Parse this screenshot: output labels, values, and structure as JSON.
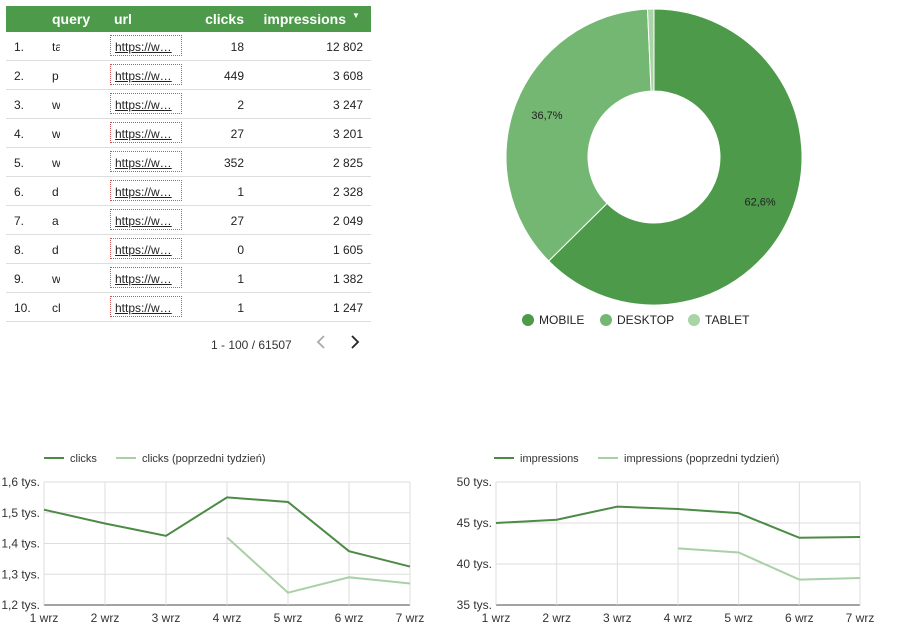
{
  "table": {
    "headers": {
      "query": "query",
      "url": "url",
      "clicks": "clicks",
      "impressions": "impressions"
    },
    "rows": [
      {
        "idx": "1.",
        "query": "ta",
        "url": "https://w…",
        "clicks": "18",
        "impressions": "12 802"
      },
      {
        "idx": "2.",
        "query": "p",
        "url": "https://w…",
        "clicks": "449",
        "impressions": "3 608"
      },
      {
        "idx": "3.",
        "query": "w",
        "url": "https://w…",
        "clicks": "2",
        "impressions": "3 247"
      },
      {
        "idx": "4.",
        "query": "w",
        "url": "https://w…",
        "clicks": "27",
        "impressions": "3 201"
      },
      {
        "idx": "5.",
        "query": "w",
        "url": "https://w…",
        "clicks": "352",
        "impressions": "2 825"
      },
      {
        "idx": "6.",
        "query": "d",
        "url": "https://w…",
        "clicks": "1",
        "impressions": "2 328"
      },
      {
        "idx": "7.",
        "query": "a",
        "url": "https://w…",
        "clicks": "27",
        "impressions": "2 049"
      },
      {
        "idx": "8.",
        "query": "d",
        "url": "https://w…",
        "clicks": "0",
        "impressions": "1 605"
      },
      {
        "idx": "9.",
        "query": "w",
        "url": "https://w…",
        "clicks": "1",
        "impressions": "1 382"
      },
      {
        "idx": "10.",
        "query": "cl",
        "url": "https://w…",
        "clicks": "1",
        "impressions": "1 247"
      }
    ],
    "pager": "1 - 100 / 61507"
  },
  "chart_data": [
    {
      "type": "pie",
      "donut": true,
      "labels": [
        "MOBILE",
        "DESKTOP",
        "TABLET"
      ],
      "values": [
        62.6,
        36.7,
        0.7
      ],
      "data_labels": [
        "62,6%",
        "36,7%",
        ""
      ],
      "colors": [
        "#4c9a4a",
        "#74b772",
        "#a8d4a6"
      ],
      "legend": "bottom"
    },
    {
      "type": "line",
      "categories": [
        "1 wrz",
        "2 wrz",
        "3 wrz",
        "4 wrz",
        "5 wrz",
        "6 wrz",
        "7 wrz"
      ],
      "series": [
        {
          "name": "clicks",
          "color": "#4c8a45",
          "values": [
            1.51,
            1.465,
            1.425,
            1.55,
            1.535,
            1.375,
            1.325
          ]
        },
        {
          "name": "clicks (poprzedni tydzień)",
          "color": "#a9d0a6",
          "values": [
            null,
            null,
            null,
            1.42,
            1.24,
            1.29,
            1.27
          ]
        }
      ],
      "ylim": [
        1.2,
        1.6
      ],
      "yticks": [
        "1,2 tys.",
        "1,3 tys.",
        "1,4 tys.",
        "1,5 tys.",
        "1,6 tys."
      ],
      "legend": "top"
    },
    {
      "type": "line",
      "categories": [
        "1 wrz",
        "2 wrz",
        "3 wrz",
        "4 wrz",
        "5 wrz",
        "6 wrz",
        "7 wrz"
      ],
      "series": [
        {
          "name": "impressions",
          "color": "#4c8a45",
          "values": [
            45.0,
            45.4,
            47.0,
            46.7,
            46.2,
            43.2,
            43.3
          ]
        },
        {
          "name": "impressions (poprzedni tydzień)",
          "color": "#a9d0a6",
          "values": [
            null,
            null,
            null,
            41.9,
            41.4,
            38.1,
            38.3
          ]
        }
      ],
      "ylim": [
        35,
        50
      ],
      "yticks": [
        "35 tys.",
        "40 tys.",
        "45 tys.",
        "50 tys."
      ],
      "legend": "top"
    }
  ]
}
